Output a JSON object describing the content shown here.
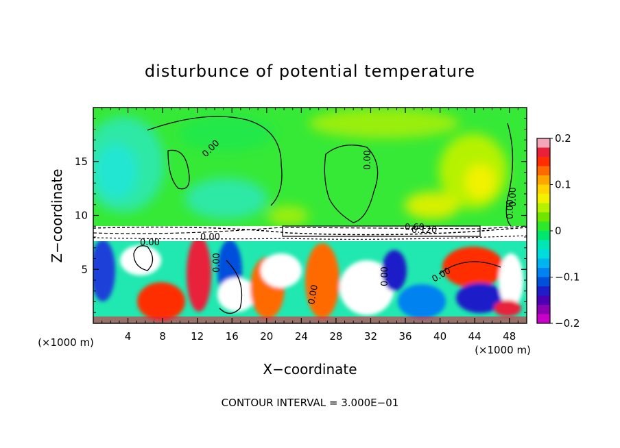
{
  "chart_data": {
    "type": "heatmap",
    "title": "disturbunce of potential temperature",
    "xlabel": "X−coordinate",
    "ylabel": "Z−coordinate",
    "x_unit": "(×1000 m)",
    "y_unit": "(×1000 m)",
    "footer": "CONTOUR INTERVAL = 3.000E−01",
    "xlim": [
      0,
      50
    ],
    "ylim": [
      0,
      20
    ],
    "x_ticks": [
      4,
      8,
      12,
      16,
      20,
      24,
      28,
      32,
      36,
      40,
      44,
      48
    ],
    "y_ticks": [
      5,
      10,
      15
    ],
    "colorbar": {
      "range": [
        -0.2,
        0.2
      ],
      "tick_values": [
        0.2,
        0.1,
        0,
        -0.1,
        -0.2
      ],
      "tick_labels": [
        "0.2",
        "0.1",
        "0",
        "−0.1",
        "−0.2"
      ],
      "colors": [
        "#f4a6b8",
        "#e8203a",
        "#ff2e00",
        "#ff6a00",
        "#ffa500",
        "#ffd400",
        "#f2f200",
        "#b6f200",
        "#6ee600",
        "#2ee82a",
        "#00e66e",
        "#00e6b4",
        "#00dcdc",
        "#00b4f0",
        "#0082f0",
        "#0050dc",
        "#1e1ec8",
        "#4b00b4",
        "#8c00b4",
        "#c800c8"
      ]
    },
    "contour_labels": [
      "0.00",
      "0.00",
      "0.00",
      "0.00",
      "0.00",
      "0.00",
      "0.00",
      "0.00",
      "0.00",
      "0.60",
      "0.120",
      "0.00"
    ]
  }
}
